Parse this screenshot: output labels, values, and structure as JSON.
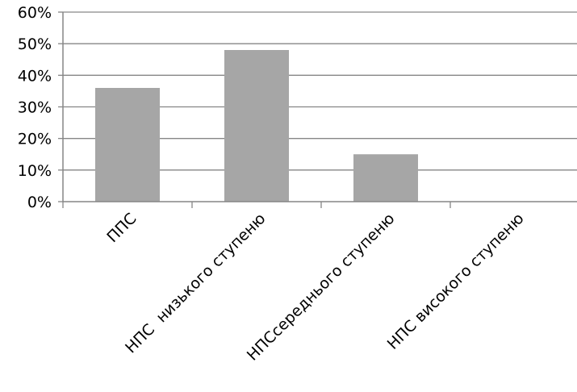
{
  "chart_data": {
    "type": "bar",
    "title": "",
    "xlabel": "",
    "ylabel": "",
    "categories": [
      "ППС",
      "НПС  низького ступеню",
      "НПСсереднього ступеню",
      "НПС високого ступеню"
    ],
    "values": [
      0.36,
      0.48,
      0.15,
      0.0
    ],
    "ylim": [
      0,
      0.6
    ],
    "yticks": [
      0,
      0.1,
      0.2,
      0.3,
      0.4,
      0.5,
      0.6
    ],
    "ytick_labels": [
      "0%",
      "10%",
      "20%",
      "30%",
      "40%",
      "50%",
      "60%"
    ],
    "grid": true,
    "legend": "none",
    "colors": {
      "bar": "#a6a6a6",
      "grid": "#868686",
      "axis": "#868686",
      "text": "#000000"
    }
  }
}
